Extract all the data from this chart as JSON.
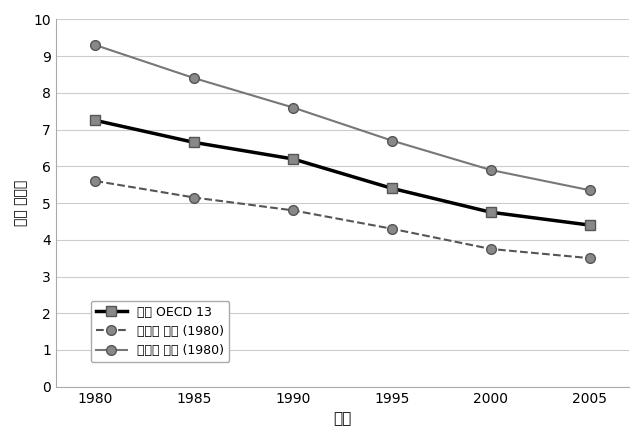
{
  "x": [
    1980,
    1985,
    1990,
    1995,
    2000,
    2005
  ],
  "mean_oecd13": [
    7.25,
    6.65,
    6.2,
    5.4,
    4.75,
    4.4
  ],
  "lower_mean_1980": [
    5.6,
    5.15,
    4.8,
    4.3,
    3.75,
    3.5
  ],
  "upper_mean_1980": [
    9.3,
    8.4,
    7.6,
    6.7,
    5.9,
    5.35
  ],
  "ylim": [
    0,
    10
  ],
  "xlim": [
    1978,
    2007
  ],
  "ylabel": "인당 병상수",
  "xlabel": "연도",
  "legend_labels": [
    "평균 OECD 13",
    "하층부 평균 (1980)",
    "상층부 평균 (1980)"
  ],
  "title": "",
  "background_color": "#ffffff",
  "grid_color": "#cccccc",
  "line_color_mean": "#333333",
  "line_color_lower": "#555555",
  "line_color_upper": "#555555",
  "marker_color": "#888888"
}
